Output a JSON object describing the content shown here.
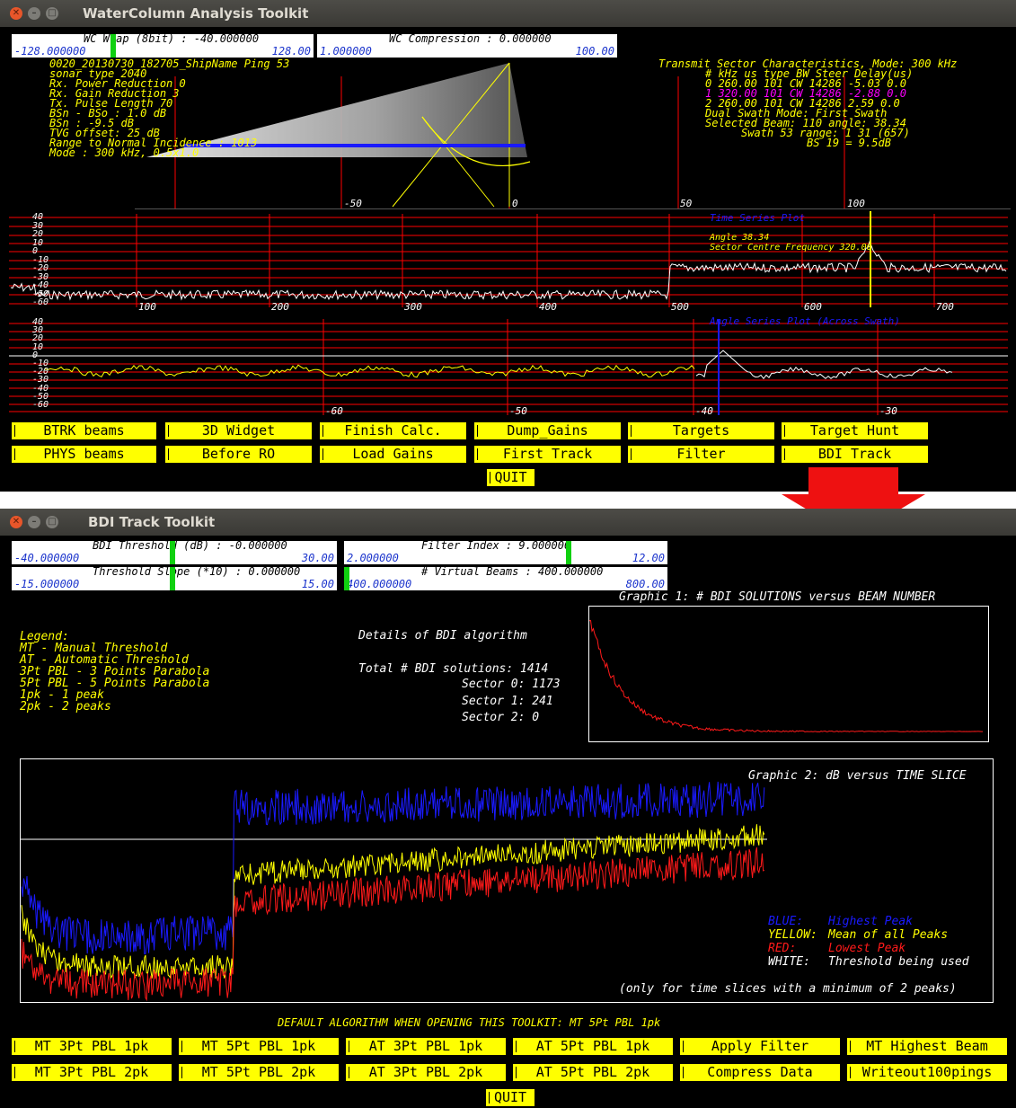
{
  "window1": {
    "title": "WaterColumn Analysis Toolkit",
    "sliders": [
      {
        "label": "WC Wrap (8bit)  : -40.000000",
        "min": "-128.000000",
        "max": "128.00"
      },
      {
        "label": "WC Compression : 0.000000",
        "min": "1.000000",
        "max": "100.00"
      }
    ],
    "info_left": [
      "0020_20130730_182705_ShipName Ping 53",
      "sonar type 2040",
      "Rx. Power Reduction 0",
      "Rx. Gain  Reduction 3",
      "Tx. Pulse Length  70",
      "BSn - BSo  : 1.0 dB",
      "BSn       : -9.5 dB",
      "TVG offset: 25 dB",
      "Range to Normal Incidence : 1013",
      "Mode : 300 kHz, 0.5x1.0"
    ],
    "info_right": [
      "Transmit Sector Characteristics, Mode: 300 kHz",
      "#  kHz  us  type  BW  Steer Delay(us)",
      "0 260.00 101  CW  14286 -5.03  0.0",
      "1 320.00 101  CW  14286 -2.88  0.0",
      "2 260.00 101  CW  14286  2.59  0.0",
      "Dual Swath Mode: First Swath",
      "Selected Beam: 110 angle: 38.34",
      "Swath 53 range: 1 31 (657)",
      "BS 19 = 9.5dB"
    ],
    "swath_ticks": [
      "-50",
      "0",
      "50",
      "100"
    ],
    "time_series": {
      "title": "Time Series Plot",
      "angle": "Angle 38.34",
      "freq": "Sector Centre Frequency 320.00",
      "y_ticks": [
        "40",
        "30",
        "20",
        "10",
        "0",
        "-10",
        "-20",
        "-30",
        "-40",
        "-50",
        "-60"
      ],
      "x_ticks": [
        "100",
        "200",
        "300",
        "400",
        "500",
        "600",
        "700"
      ]
    },
    "angle_series": {
      "title": "Angle Series Plot (Across Swath)",
      "y_ticks": [
        "40",
        "30",
        "20",
        "10",
        "0",
        "-10",
        "-20",
        "-30",
        "-40",
        "-50",
        "-60"
      ],
      "x_ticks": [
        "-60",
        "-50",
        "-40",
        "-30"
      ]
    },
    "buttons_row1": [
      "BTRK beams",
      "3D Widget",
      "Finish Calc.",
      "Dump_Gains",
      "Targets",
      "Target Hunt"
    ],
    "buttons_row2": [
      "PHYS beams",
      "Before RO",
      "Load Gains",
      "First Track",
      "Filter",
      "BDI Track"
    ],
    "quit": "QUIT"
  },
  "window2": {
    "title": "BDI Track Toolkit",
    "sliders": [
      {
        "label": "BDI Threshold (dB) : -0.000000",
        "min": "-40.000000",
        "max": "30.00"
      },
      {
        "label": "Filter Index : 9.000000",
        "min": "2.000000",
        "max": "12.00"
      },
      {
        "label": "Threshold Slope (*10) : 0.000000",
        "min": "-15.000000",
        "max": "15.00"
      },
      {
        "label": "# Virtual Beams : 400.000000",
        "min": "400.000000",
        "max": "800.00"
      }
    ],
    "legend": [
      "Legend:",
      " MT - Manual Threshold",
      " AT - Automatic Threshold",
      " 3Pt PBL - 3 Points Parabola",
      " 5Pt PBL - 5 Points Parabola",
      " 1pk - 1 peak",
      " 2pk - 2 peaks"
    ],
    "details": {
      "title": "Details of BDI algorithm",
      "total": "Total # BDI solutions: 1414",
      "s0": "Sector 0: 1173",
      "s1": "Sector 1: 241",
      "s2": "Sector 2: 0"
    },
    "graphic1_title": "Graphic 1: # BDI SOLUTIONS versus BEAM NUMBER",
    "graphic2_title": "Graphic 2: dB versus TIME SLICE",
    "key": [
      {
        "k": "BLUE:",
        "v": "Highest Peak",
        "color": "#1a1aff"
      },
      {
        "k": "YELLOW:",
        "v": "Mean of all Peaks",
        "color": "#ffff00"
      },
      {
        "k": "RED:",
        "v": "Lowest Peak",
        "color": "#ff1a1a"
      },
      {
        "k": "WHITE:",
        "v": "Threshold being used",
        "color": "#ffffff"
      }
    ],
    "note": "(only for time slices with a minimum of 2 peaks)",
    "default_algo": "DEFAULT ALGORITHM WHEN OPENING THIS TOOLKIT: MT 5Pt PBL 1pk",
    "buttons_row1": [
      "MT 3Pt PBL 1pk",
      "MT 5Pt PBL 1pk",
      "AT 3Pt PBL 1pk",
      "AT 5Pt PBL 1pk",
      "Apply Filter",
      "MT Highest Beam"
    ],
    "buttons_row2": [
      "MT 3Pt PBL 2pk",
      "MT 5Pt PBL 2pk",
      "AT 3Pt PBL 2pk",
      "AT 5Pt PBL 2pk",
      "Compress Data",
      "Writeout100pings"
    ],
    "quit": "QUIT"
  }
}
